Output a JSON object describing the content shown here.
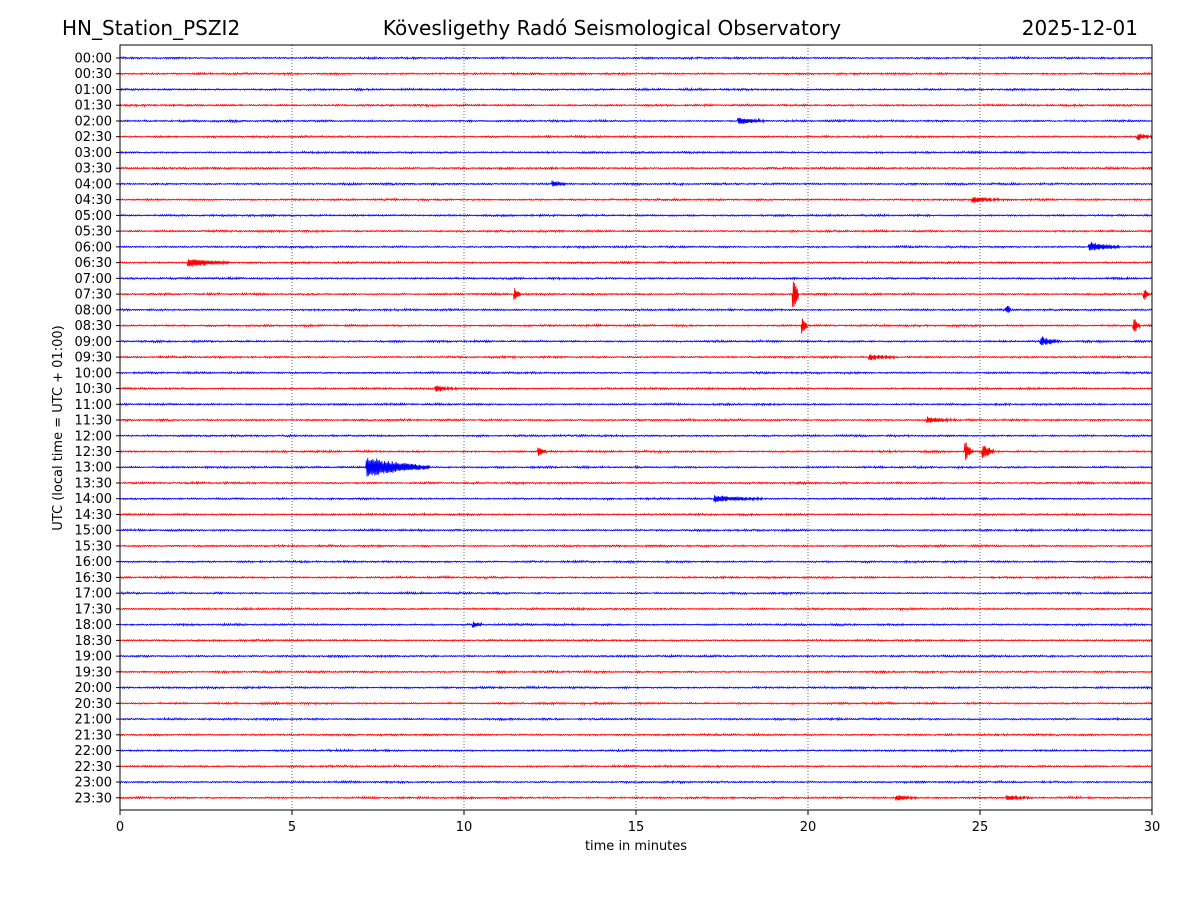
{
  "chart_data": {
    "type": "line",
    "header": {
      "station": "HN_Station_PSZI2",
      "observatory": "Kövesligethy Radó Seismological Observatory",
      "date": "2025-12-01"
    },
    "xlabel": "time in minutes",
    "ylabel": "UTC (local time = UTC + 01:00)",
    "xlim": [
      0,
      30
    ],
    "xticks": [
      0,
      5,
      10,
      15,
      20,
      25,
      30
    ],
    "grid": "vertical dotted lines at each x tick",
    "series_colors": [
      "#0000ff",
      "#ff0000"
    ],
    "traces": [
      {
        "label": "00:00",
        "color": "#0000ff",
        "events": []
      },
      {
        "label": "00:30",
        "color": "#ff0000",
        "events": []
      },
      {
        "label": "01:00",
        "color": "#0000ff",
        "events": []
      },
      {
        "label": "01:30",
        "color": "#ff0000",
        "events": []
      },
      {
        "label": "02:00",
        "color": "#0000ff",
        "events": [
          {
            "t": 18.0,
            "dur": 0.8,
            "amp": 0.35
          }
        ]
      },
      {
        "label": "02:30",
        "color": "#ff0000",
        "events": [
          {
            "t": 29.6,
            "dur": 0.4,
            "amp": 0.35
          }
        ]
      },
      {
        "label": "03:00",
        "color": "#0000ff",
        "events": []
      },
      {
        "label": "03:30",
        "color": "#ff0000",
        "events": []
      },
      {
        "label": "04:00",
        "color": "#0000ff",
        "events": [
          {
            "t": 12.6,
            "dur": 0.4,
            "amp": 0.3
          }
        ]
      },
      {
        "label": "04:30",
        "color": "#ff0000",
        "events": [
          {
            "t": 24.8,
            "dur": 0.8,
            "amp": 0.35
          }
        ]
      },
      {
        "label": "05:00",
        "color": "#0000ff",
        "events": []
      },
      {
        "label": "05:30",
        "color": "#ff0000",
        "events": []
      },
      {
        "label": "06:00",
        "color": "#0000ff",
        "events": [
          {
            "t": 28.2,
            "dur": 0.9,
            "amp": 0.5
          }
        ]
      },
      {
        "label": "06:30",
        "color": "#ff0000",
        "events": [
          {
            "t": 2.0,
            "dur": 1.2,
            "amp": 0.45
          }
        ]
      },
      {
        "label": "07:00",
        "color": "#0000ff",
        "events": []
      },
      {
        "label": "07:30",
        "color": "#ff0000",
        "events": [
          {
            "t": 11.5,
            "dur": 0.15,
            "amp": 0.6
          },
          {
            "t": 19.6,
            "dur": 0.12,
            "amp": 1.8
          },
          {
            "t": 29.8,
            "dur": 0.12,
            "amp": 0.6
          }
        ]
      },
      {
        "label": "08:00",
        "color": "#0000ff",
        "events": [
          {
            "t": 25.8,
            "dur": 0.1,
            "amp": 0.5
          }
        ]
      },
      {
        "label": "08:30",
        "color": "#ff0000",
        "events": [
          {
            "t": 19.85,
            "dur": 0.12,
            "amp": 0.9
          },
          {
            "t": 29.5,
            "dur": 0.15,
            "amp": 0.7
          }
        ]
      },
      {
        "label": "09:00",
        "color": "#0000ff",
        "events": [
          {
            "t": 26.8,
            "dur": 0.5,
            "amp": 0.45
          }
        ]
      },
      {
        "label": "09:30",
        "color": "#ff0000",
        "events": [
          {
            "t": 21.8,
            "dur": 0.8,
            "amp": 0.3
          }
        ]
      },
      {
        "label": "10:00",
        "color": "#0000ff",
        "events": []
      },
      {
        "label": "10:30",
        "color": "#ff0000",
        "events": [
          {
            "t": 9.2,
            "dur": 0.6,
            "amp": 0.3
          }
        ]
      },
      {
        "label": "11:00",
        "color": "#0000ff",
        "events": []
      },
      {
        "label": "11:30",
        "color": "#ff0000",
        "events": [
          {
            "t": 23.5,
            "dur": 0.8,
            "amp": 0.3
          }
        ]
      },
      {
        "label": "12:00",
        "color": "#0000ff",
        "events": []
      },
      {
        "label": "12:30",
        "color": "#ff0000",
        "events": [
          {
            "t": 12.2,
            "dur": 0.2,
            "amp": 0.45
          },
          {
            "t": 24.6,
            "dur": 0.2,
            "amp": 0.9
          },
          {
            "t": 25.1,
            "dur": 0.3,
            "amp": 0.75
          }
        ]
      },
      {
        "label": "13:00",
        "color": "#0000ff",
        "events": [
          {
            "t": 7.2,
            "dur": 1.8,
            "amp": 1.1
          }
        ]
      },
      {
        "label": "13:30",
        "color": "#ff0000",
        "events": []
      },
      {
        "label": "14:00",
        "color": "#0000ff",
        "events": [
          {
            "t": 17.3,
            "dur": 1.4,
            "amp": 0.35
          }
        ]
      },
      {
        "label": "14:30",
        "color": "#ff0000",
        "events": []
      },
      {
        "label": "15:00",
        "color": "#0000ff",
        "events": []
      },
      {
        "label": "15:30",
        "color": "#ff0000",
        "events": []
      },
      {
        "label": "16:00",
        "color": "#0000ff",
        "events": []
      },
      {
        "label": "16:30",
        "color": "#ff0000",
        "events": []
      },
      {
        "label": "17:00",
        "color": "#0000ff",
        "events": []
      },
      {
        "label": "17:30",
        "color": "#ff0000",
        "events": []
      },
      {
        "label": "18:00",
        "color": "#0000ff",
        "events": [
          {
            "t": 10.3,
            "dur": 0.2,
            "amp": 0.35
          }
        ]
      },
      {
        "label": "18:30",
        "color": "#ff0000",
        "events": []
      },
      {
        "label": "19:00",
        "color": "#0000ff",
        "events": []
      },
      {
        "label": "19:30",
        "color": "#ff0000",
        "events": []
      },
      {
        "label": "20:00",
        "color": "#0000ff",
        "events": []
      },
      {
        "label": "20:30",
        "color": "#ff0000",
        "events": []
      },
      {
        "label": "21:00",
        "color": "#0000ff",
        "events": []
      },
      {
        "label": "21:30",
        "color": "#ff0000",
        "events": []
      },
      {
        "label": "22:00",
        "color": "#0000ff",
        "events": []
      },
      {
        "label": "22:30",
        "color": "#ff0000",
        "events": []
      },
      {
        "label": "23:00",
        "color": "#0000ff",
        "events": []
      },
      {
        "label": "23:30",
        "color": "#ff0000",
        "events": [
          {
            "t": 22.6,
            "dur": 0.6,
            "amp": 0.3
          },
          {
            "t": 25.8,
            "dur": 0.6,
            "amp": 0.3
          }
        ]
      }
    ]
  }
}
